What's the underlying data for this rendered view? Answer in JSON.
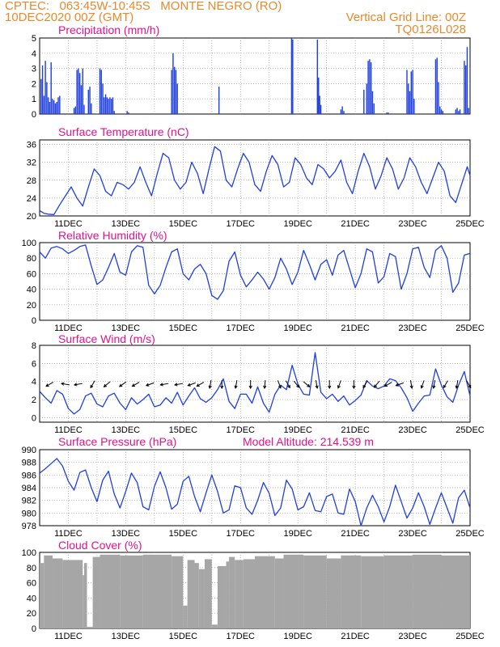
{
  "header": {
    "line1_left": "CPTEC:   063:45W-10:45S   MONTE NEGRO (RO)",
    "line2_left": "10DEC2020 00Z (GMT)",
    "line2_right": "Vertical Grid Line: 00Z",
    "line3_right": "TQ0126L028"
  },
  "colors": {
    "line": "#1f3fe0",
    "bar": "#1f3fe0",
    "cloud": "#a6a6a6",
    "title": "#e0138c",
    "header": "#e8892e"
  },
  "chart_data": [
    {
      "type": "bar",
      "title": "Precipitation (mm/h)",
      "x_range": [
        10,
        25
      ],
      "xticks": [
        "11DEC",
        "13DEC",
        "15DEC",
        "17DEC",
        "19DEC",
        "21DEC",
        "23DEC",
        "25DEC"
      ],
      "xtick_days": [
        11,
        13,
        15,
        17,
        19,
        21,
        23,
        25
      ],
      "ylim": [
        0,
        5
      ],
      "yticks": [
        0,
        1,
        2,
        3,
        4,
        5
      ],
      "grid": true,
      "x": [
        10.05,
        10.1,
        10.15,
        10.2,
        10.25,
        10.3,
        10.35,
        10.4,
        10.45,
        10.5,
        10.55,
        10.6,
        10.65,
        10.7,
        11.2,
        11.25,
        11.3,
        11.35,
        11.4,
        11.45,
        11.5,
        11.55,
        11.7,
        11.75,
        11.8,
        12.1,
        12.15,
        12.2,
        12.25,
        12.3,
        12.35,
        12.4,
        12.45,
        12.5,
        12.55,
        12.6,
        13.05,
        13.1,
        14.6,
        14.65,
        14.7,
        14.75,
        14.8,
        16.25,
        18.78,
        18.82,
        19.68,
        19.72,
        19.76,
        19.8,
        20.5,
        20.55,
        20.6,
        21.3,
        21.4,
        21.45,
        21.5,
        21.55,
        21.6,
        21.65,
        22.1,
        22.15,
        22.8,
        22.85,
        22.9,
        22.95,
        23.0,
        23.05,
        23.8,
        23.85,
        23.9,
        23.95,
        24.0,
        24.05,
        24.5,
        24.55,
        24.6,
        24.65,
        24.8,
        24.85,
        24.9,
        24.95
      ],
      "values": [
        2.3,
        3.2,
        1.2,
        3.5,
        2.1,
        1.1,
        0.8,
        3.4,
        1.0,
        0.9,
        0.7,
        0.8,
        1.1,
        1.2,
        0.4,
        0.5,
        2.9,
        3.0,
        2.7,
        1.9,
        3.0,
        0.6,
        1.6,
        1.8,
        0.7,
        3.0,
        2.9,
        2.0,
        1.1,
        1.3,
        1.1,
        1.0,
        1.1,
        1.0,
        1.1,
        0.2,
        0.2,
        0.1,
        2.9,
        4.0,
        3.1,
        2.9,
        2.0,
        1.8,
        5.0,
        4.9,
        4.9,
        2.4,
        1.2,
        0.6,
        0.3,
        0.5,
        0.2,
        1.6,
        2.0,
        3.5,
        3.6,
        3.4,
        1.5,
        0.7,
        0.1,
        0.1,
        2.9,
        2.0,
        1.5,
        2.8,
        2.9,
        1.0,
        3.6,
        3.7,
        2.1,
        0.5,
        0.3,
        0.2,
        0.3,
        0.4,
        0.2,
        0.3,
        3.5,
        3.2,
        4.4,
        0.4
      ]
    },
    {
      "type": "line",
      "title": "Surface Temperature (nC)",
      "x_range": [
        10,
        25
      ],
      "xticks": [
        "11DEC",
        "13DEC",
        "15DEC",
        "17DEC",
        "19DEC",
        "21DEC",
        "23DEC",
        "25DEC"
      ],
      "xtick_days": [
        11,
        13,
        15,
        17,
        19,
        21,
        23,
        25
      ],
      "ylim": [
        20,
        37
      ],
      "yticks": [
        20,
        24,
        28,
        32,
        36
      ],
      "grid": true,
      "x": [
        10.0,
        10.15,
        10.3,
        10.5,
        10.7,
        10.9,
        11.1,
        11.3,
        11.5,
        11.7,
        11.9,
        12.1,
        12.3,
        12.5,
        12.7,
        12.9,
        13.1,
        13.3,
        13.5,
        13.7,
        13.9,
        14.1,
        14.3,
        14.5,
        14.7,
        14.9,
        15.1,
        15.3,
        15.5,
        15.7,
        15.9,
        16.1,
        16.3,
        16.5,
        16.7,
        16.9,
        17.1,
        17.3,
        17.5,
        17.7,
        17.9,
        18.1,
        18.3,
        18.5,
        18.7,
        18.9,
        19.1,
        19.3,
        19.5,
        19.7,
        19.9,
        20.1,
        20.3,
        20.5,
        20.7,
        20.9,
        21.1,
        21.3,
        21.5,
        21.7,
        21.9,
        22.1,
        22.3,
        22.5,
        22.7,
        22.9,
        23.1,
        23.3,
        23.5,
        23.7,
        23.9,
        24.1,
        24.3,
        24.5,
        24.7,
        24.9,
        25.0
      ],
      "values": [
        21.2,
        20.6,
        20.4,
        20.3,
        22.5,
        24.5,
        26.5,
        24.0,
        22.2,
        26.5,
        30.5,
        29.0,
        25.5,
        24.5,
        27.5,
        27.0,
        26.0,
        27.5,
        31.0,
        27.5,
        24.5,
        29.5,
        34.0,
        33.0,
        28.0,
        26.0,
        27.5,
        32.0,
        29.5,
        25.0,
        30.5,
        35.5,
        34.5,
        28.0,
        26.5,
        30.5,
        34.0,
        32.0,
        27.0,
        25.5,
        30.0,
        33.5,
        31.5,
        26.5,
        27.5,
        33.0,
        31.5,
        28.5,
        27.0,
        31.5,
        30.5,
        28.5,
        30.0,
        32.5,
        27.5,
        25.0,
        30.0,
        34.0,
        31.0,
        26.0,
        29.0,
        33.0,
        30.5,
        26.0,
        28.5,
        33.0,
        31.0,
        27.5,
        25.0,
        28.5,
        32.0,
        30.0,
        24.5,
        23.0,
        27.0,
        31.0,
        29.0
      ]
    },
    {
      "type": "line",
      "title": "Relative Humidity (%)",
      "x_range": [
        10,
        25
      ],
      "xticks": [
        "11DEC",
        "13DEC",
        "15DEC",
        "17DEC",
        "19DEC",
        "21DEC",
        "23DEC",
        "25DEC"
      ],
      "xtick_days": [
        11,
        13,
        15,
        17,
        19,
        21,
        23,
        25
      ],
      "ylim": [
        0,
        100
      ],
      "yticks": [
        0,
        20,
        40,
        60,
        80,
        100
      ],
      "grid": true,
      "x": [
        10.0,
        10.2,
        10.4,
        10.6,
        10.8,
        11.0,
        11.2,
        11.4,
        11.6,
        11.8,
        12.0,
        12.2,
        12.4,
        12.6,
        12.8,
        13.0,
        13.2,
        13.4,
        13.6,
        13.8,
        14.0,
        14.2,
        14.4,
        14.6,
        14.8,
        15.0,
        15.2,
        15.4,
        15.6,
        15.8,
        16.0,
        16.2,
        16.4,
        16.6,
        16.8,
        17.0,
        17.2,
        17.4,
        17.6,
        17.8,
        18.0,
        18.2,
        18.4,
        18.6,
        18.8,
        19.0,
        19.2,
        19.4,
        19.6,
        19.8,
        20.0,
        20.2,
        20.4,
        20.6,
        20.8,
        21.0,
        21.2,
        21.4,
        21.6,
        21.8,
        22.0,
        22.2,
        22.4,
        22.6,
        22.8,
        23.0,
        23.2,
        23.4,
        23.6,
        23.8,
        24.0,
        24.2,
        24.4,
        24.6,
        24.8,
        25.0
      ],
      "values": [
        88,
        80,
        93,
        95,
        92,
        86,
        90,
        95,
        97,
        70,
        46,
        52,
        68,
        86,
        62,
        58,
        88,
        96,
        94,
        45,
        34,
        45,
        68,
        88,
        92,
        60,
        52,
        66,
        72,
        60,
        32,
        27,
        38,
        76,
        88,
        58,
        43,
        52,
        62,
        53,
        40,
        55,
        80,
        66,
        46,
        62,
        90,
        72,
        52,
        72,
        78,
        58,
        84,
        90,
        66,
        42,
        60,
        92,
        88,
        48,
        56,
        86,
        82,
        40,
        60,
        92,
        94,
        68,
        55,
        90,
        96,
        80,
        36,
        48,
        84,
        86
      ]
    },
    {
      "type": "line",
      "title": "Surface Wind (m/s)",
      "x_range": [
        10,
        25
      ],
      "xticks": [
        "11DEC",
        "13DEC",
        "15DEC",
        "17DEC",
        "19DEC",
        "21DEC",
        "23DEC",
        "25DEC"
      ],
      "xtick_days": [
        11,
        13,
        15,
        17,
        19,
        21,
        23,
        25
      ],
      "ylim": [
        -0.5,
        8
      ],
      "yticks": [
        0,
        2,
        4,
        6,
        8
      ],
      "grid": true,
      "x": [
        10.0,
        10.2,
        10.4,
        10.6,
        10.8,
        11.0,
        11.2,
        11.4,
        11.6,
        11.8,
        12.0,
        12.2,
        12.4,
        12.6,
        12.8,
        13.0,
        13.2,
        13.4,
        13.6,
        13.8,
        14.0,
        14.2,
        14.4,
        14.6,
        14.8,
        15.0,
        15.2,
        15.4,
        15.6,
        15.8,
        16.0,
        16.2,
        16.4,
        16.6,
        16.8,
        17.0,
        17.2,
        17.4,
        17.6,
        17.8,
        18.0,
        18.2,
        18.4,
        18.6,
        18.8,
        19.0,
        19.2,
        19.4,
        19.6,
        19.8,
        20.0,
        20.2,
        20.4,
        20.6,
        20.8,
        21.0,
        21.2,
        21.4,
        21.6,
        21.8,
        22.0,
        22.2,
        22.4,
        22.6,
        22.8,
        23.0,
        23.2,
        23.4,
        23.6,
        23.8,
        24.0,
        24.2,
        24.4,
        24.6,
        24.8,
        25.0
      ],
      "values": [
        2.9,
        2.2,
        1.6,
        3.0,
        2.6,
        1.0,
        0.4,
        0.9,
        2.4,
        2.7,
        1.5,
        1.2,
        2.4,
        2.7,
        1.6,
        0.9,
        2.2,
        1.5,
        2.0,
        2.6,
        1.2,
        1.4,
        2.2,
        1.6,
        2.8,
        1.4,
        2.4,
        3.3,
        2.1,
        1.7,
        2.2,
        3.1,
        4.3,
        1.8,
        1.0,
        2.6,
        2.6,
        1.6,
        3.4,
        1.6,
        0.6,
        2.6,
        3.6,
        3.1,
        5.8,
        3.7,
        2.6,
        2.5,
        7.2,
        2.8,
        2.1,
        2.6,
        1.8,
        2.4,
        1.4,
        1.9,
        2.5,
        4.1,
        3.5,
        3.2,
        3.5,
        4.3,
        4.1,
        3.3,
        2.2,
        0.7,
        1.6,
        2.4,
        2.5,
        5.4,
        3.6,
        2.3,
        1.7,
        3.6,
        5.1,
        2.4
      ],
      "vectors": {
        "y": 3.7,
        "x": [
          10.35,
          10.9,
          11.35,
          11.85,
          12.35,
          12.9,
          13.35,
          13.85,
          14.35,
          14.85,
          15.3,
          15.6,
          15.95,
          16.35,
          16.85,
          17.35,
          17.85,
          18.35,
          18.65,
          18.95,
          19.3,
          19.65,
          20.1,
          20.45,
          20.95,
          21.35,
          21.75,
          22.15,
          22.55,
          22.95,
          23.35,
          23.75,
          24.15,
          24.55,
          24.95
        ],
        "angle_deg": [
          -150,
          170,
          -170,
          -120,
          -140,
          -145,
          -150,
          -160,
          -170,
          -170,
          -160,
          -150,
          -100,
          -90,
          -100,
          -90,
          -95,
          -70,
          -60,
          -50,
          -40,
          -80,
          -90,
          -110,
          -90,
          -120,
          -130,
          -150,
          -160,
          -80,
          -110,
          -100,
          -120,
          -100,
          -60
        ]
      }
    },
    {
      "type": "line",
      "title": "Surface Pressure (hPa)",
      "annotation": "Model Altitude: 214.539 m",
      "x_range": [
        10,
        25
      ],
      "xticks": [
        "11DEC",
        "13DEC",
        "15DEC",
        "17DEC",
        "19DEC",
        "21DEC",
        "23DEC",
        "25DEC"
      ],
      "xtick_days": [
        11,
        13,
        15,
        17,
        19,
        21,
        23,
        25
      ],
      "ylim": [
        978,
        990
      ],
      "yticks": [
        978,
        980,
        982,
        984,
        986,
        988,
        990
      ],
      "grid": true,
      "x": [
        10.0,
        10.2,
        10.4,
        10.6,
        10.8,
        11.0,
        11.2,
        11.4,
        11.6,
        11.8,
        12.0,
        12.2,
        12.4,
        12.6,
        12.8,
        13.0,
        13.2,
        13.4,
        13.6,
        13.8,
        14.0,
        14.2,
        14.4,
        14.6,
        14.8,
        15.0,
        15.2,
        15.4,
        15.6,
        15.8,
        16.0,
        16.2,
        16.4,
        16.6,
        16.8,
        17.0,
        17.2,
        17.4,
        17.6,
        17.8,
        18.0,
        18.2,
        18.4,
        18.6,
        18.8,
        19.0,
        19.2,
        19.4,
        19.6,
        19.8,
        20.0,
        20.2,
        20.4,
        20.6,
        20.8,
        21.0,
        21.2,
        21.4,
        21.6,
        21.8,
        22.0,
        22.2,
        22.4,
        22.6,
        22.8,
        23.0,
        23.2,
        23.4,
        23.6,
        23.8,
        24.0,
        24.2,
        24.4,
        24.6,
        24.8,
        25.0
      ],
      "values": [
        986.3,
        987.0,
        987.8,
        988.6,
        987.4,
        985.0,
        983.6,
        986.4,
        986.8,
        984.0,
        981.8,
        985.2,
        986.6,
        983.0,
        980.8,
        983.4,
        986.3,
        984.8,
        981.0,
        980.5,
        984.2,
        986.5,
        984.0,
        980.6,
        981.4,
        985.0,
        985.8,
        982.6,
        980.2,
        983.2,
        986.0,
        983.4,
        980.0,
        980.5,
        984.3,
        984.0,
        980.8,
        979.8,
        982.0,
        984.8,
        983.1,
        979.6,
        980.8,
        985.2,
        983.8,
        980.5,
        981.0,
        983.2,
        980.4,
        980.2,
        982.6,
        983.0,
        980.0,
        979.8,
        983.8,
        981.8,
        978.0,
        980.8,
        982.8,
        981.0,
        978.6,
        981.0,
        984.4,
        981.8,
        979.2,
        980.8,
        983.2,
        981.0,
        978.2,
        980.8,
        983.2,
        980.8,
        978.4,
        982.4,
        983.6,
        980.8
      ]
    },
    {
      "type": "bar",
      "title": "Cloud Cover (%)",
      "x_range": [
        10,
        25
      ],
      "xticks": [
        "11DEC",
        "13DEC",
        "15DEC",
        "17DEC",
        "19DEC",
        "21DEC",
        "23DEC",
        "25DEC"
      ],
      "xtick_days": [
        11,
        13,
        15,
        17,
        19,
        21,
        23,
        25
      ],
      "ylim": [
        0,
        100
      ],
      "yticks": [
        0,
        20,
        40,
        60,
        80,
        100
      ],
      "grid": true,
      "segments": [
        {
          "from": 10.0,
          "to": 10.15,
          "value": 86
        },
        {
          "from": 10.15,
          "to": 10.45,
          "value": 96
        },
        {
          "from": 10.45,
          "to": 10.8,
          "value": 92
        },
        {
          "from": 10.8,
          "to": 11.5,
          "value": 90
        },
        {
          "from": 11.5,
          "to": 11.55,
          "value": 70
        },
        {
          "from": 11.55,
          "to": 11.65,
          "value": 86
        },
        {
          "from": 11.65,
          "to": 11.85,
          "value": 2
        },
        {
          "from": 11.85,
          "to": 12.1,
          "value": 94
        },
        {
          "from": 12.1,
          "to": 12.8,
          "value": 97
        },
        {
          "from": 12.8,
          "to": 13.6,
          "value": 96
        },
        {
          "from": 13.6,
          "to": 14.6,
          "value": 97
        },
        {
          "from": 14.6,
          "to": 15.0,
          "value": 95
        },
        {
          "from": 15.0,
          "to": 15.15,
          "value": 30
        },
        {
          "from": 15.15,
          "to": 15.4,
          "value": 90
        },
        {
          "from": 15.4,
          "to": 15.55,
          "value": 86
        },
        {
          "from": 15.55,
          "to": 15.75,
          "value": 78
        },
        {
          "from": 15.75,
          "to": 16.0,
          "value": 91
        },
        {
          "from": 16.0,
          "to": 16.2,
          "value": 5
        },
        {
          "from": 16.2,
          "to": 16.5,
          "value": 82
        },
        {
          "from": 16.5,
          "to": 16.6,
          "value": 88
        },
        {
          "from": 16.6,
          "to": 16.8,
          "value": 94
        },
        {
          "from": 16.8,
          "to": 17.1,
          "value": 90
        },
        {
          "from": 17.1,
          "to": 17.5,
          "value": 91
        },
        {
          "from": 17.5,
          "to": 18.2,
          "value": 95
        },
        {
          "from": 18.2,
          "to": 18.5,
          "value": 92
        },
        {
          "from": 18.5,
          "to": 19.2,
          "value": 97
        },
        {
          "from": 19.2,
          "to": 20.0,
          "value": 96
        },
        {
          "from": 20.0,
          "to": 20.5,
          "value": 92
        },
        {
          "from": 20.5,
          "to": 21.2,
          "value": 96
        },
        {
          "from": 21.2,
          "to": 22.0,
          "value": 95
        },
        {
          "from": 22.0,
          "to": 23.0,
          "value": 96
        },
        {
          "from": 23.0,
          "to": 24.0,
          "value": 97
        },
        {
          "from": 24.0,
          "to": 25.0,
          "value": 96
        }
      ]
    }
  ]
}
